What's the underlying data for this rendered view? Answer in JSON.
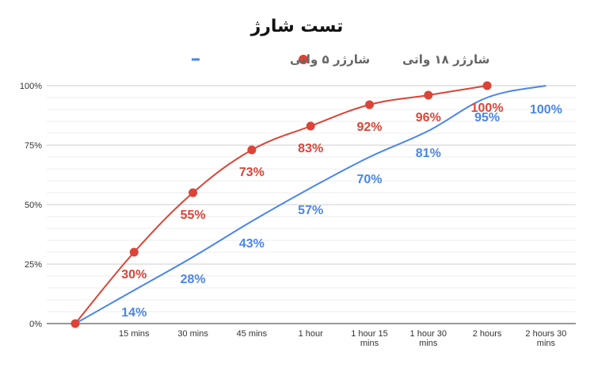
{
  "chart_data": {
    "type": "line",
    "title": "تست شارژ",
    "xlabel": "",
    "ylabel": "",
    "categories": [
      "",
      "15 mins",
      "30 mins",
      "45 mins",
      "1 hour",
      "1 hour 15 mins",
      "1 hour 30 mins",
      "2 hours",
      "2 hours 30 mins"
    ],
    "y_ticks": [
      "0%",
      "25%",
      "50%",
      "75%",
      "100%"
    ],
    "ylim": [
      0,
      100
    ],
    "grid": true,
    "legend_position": "top",
    "series": [
      {
        "name": "شارژر ۱۸ واتی",
        "color": "#db4437",
        "marker": "circle",
        "x": [
          0,
          1,
          2,
          3,
          4,
          5,
          6,
          7
        ],
        "values": [
          0,
          30,
          55,
          73,
          83,
          92,
          96,
          100
        ],
        "labels": [
          "",
          "30%",
          "55%",
          "73%",
          "83%",
          "92%",
          "96%",
          "100%"
        ]
      },
      {
        "name": "شارژر ۵ واتی",
        "color": "#4a86e8",
        "marker": "none",
        "x": [
          0,
          1,
          2,
          3,
          4,
          5,
          6,
          7,
          8
        ],
        "values": [
          0,
          14,
          28,
          43,
          57,
          70,
          81,
          95,
          100
        ],
        "labels": [
          "",
          "14%",
          "28%",
          "43%",
          "57%",
          "70%",
          "81%",
          "95%",
          "100%"
        ]
      }
    ]
  }
}
